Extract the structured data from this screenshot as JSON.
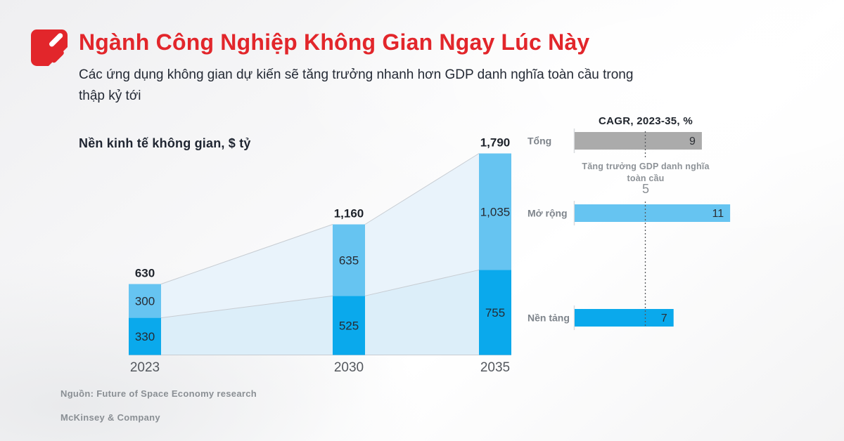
{
  "page": {
    "title": "Ngành Công Nghiệp Không Gian Ngay Lúc Này",
    "subtitle": "Các ứng dụng không gian dự kiến sẽ tăng trưởng nhanh hơn GDP danh nghĩa toàn cầu trong thập kỷ tới",
    "accent_color": "#e2262b"
  },
  "logo": {
    "icon": "mckinsey-red-mark-icon",
    "color": "#e2262b"
  },
  "chart_data": [
    {
      "type": "bar",
      "subtype": "stacked-column-with-funnel-areas",
      "title": "Nền kinh tế không gian, $ tỷ",
      "categories": [
        "2023",
        "2030",
        "2035"
      ],
      "series": [
        {
          "name": "Nền tảng",
          "values": [
            330,
            525,
            755
          ],
          "labels": [
            "330",
            "525",
            "755"
          ],
          "color": "#0aa9ec"
        },
        {
          "name": "Mở rộng",
          "values": [
            300,
            635,
            1035
          ],
          "labels": [
            "300",
            "635",
            "1,035"
          ],
          "color": "#66c4f1"
        }
      ],
      "totals": [
        630,
        1160,
        1790
      ],
      "total_labels": [
        "630",
        "1,160",
        "1,790"
      ],
      "ylim": [
        0,
        1790
      ],
      "grid": false,
      "funnel_fill_upper": "#e9f3fb",
      "funnel_fill_lower": "#dceef9",
      "funnel_line_color": "#c7ccd2",
      "label_color": "#262b33",
      "total_label_color": "#1f242c",
      "axis_label_color": "#54585e"
    },
    {
      "type": "bar",
      "subtype": "horizontal",
      "title": "CAGR, 2023-35, %",
      "categories": [
        "Tổng",
        "Mở rộng",
        "Nền tảng"
      ],
      "values": [
        9,
        11,
        7
      ],
      "value_labels": [
        "9",
        "11",
        "7"
      ],
      "bar_colors": [
        "#ababab",
        "#66c4f1",
        "#0aa9ec"
      ],
      "xlim": [
        0,
        12
      ],
      "legend": "none",
      "category_label_color": "#7e848b",
      "value_label_color": "#2b2e33",
      "reference_line": {
        "value": 5,
        "label": "Tăng trưởng GDP danh nghĩa toàn cầu",
        "label_lines": [
          "Tăng trưởng GDP danh nghĩa",
          "toàn cầu"
        ],
        "style": "dotted",
        "color": "#54575b"
      }
    }
  ],
  "footer": {
    "source": "Nguồn: Future of Space Economy research",
    "brand": "McKinsey & Company"
  }
}
